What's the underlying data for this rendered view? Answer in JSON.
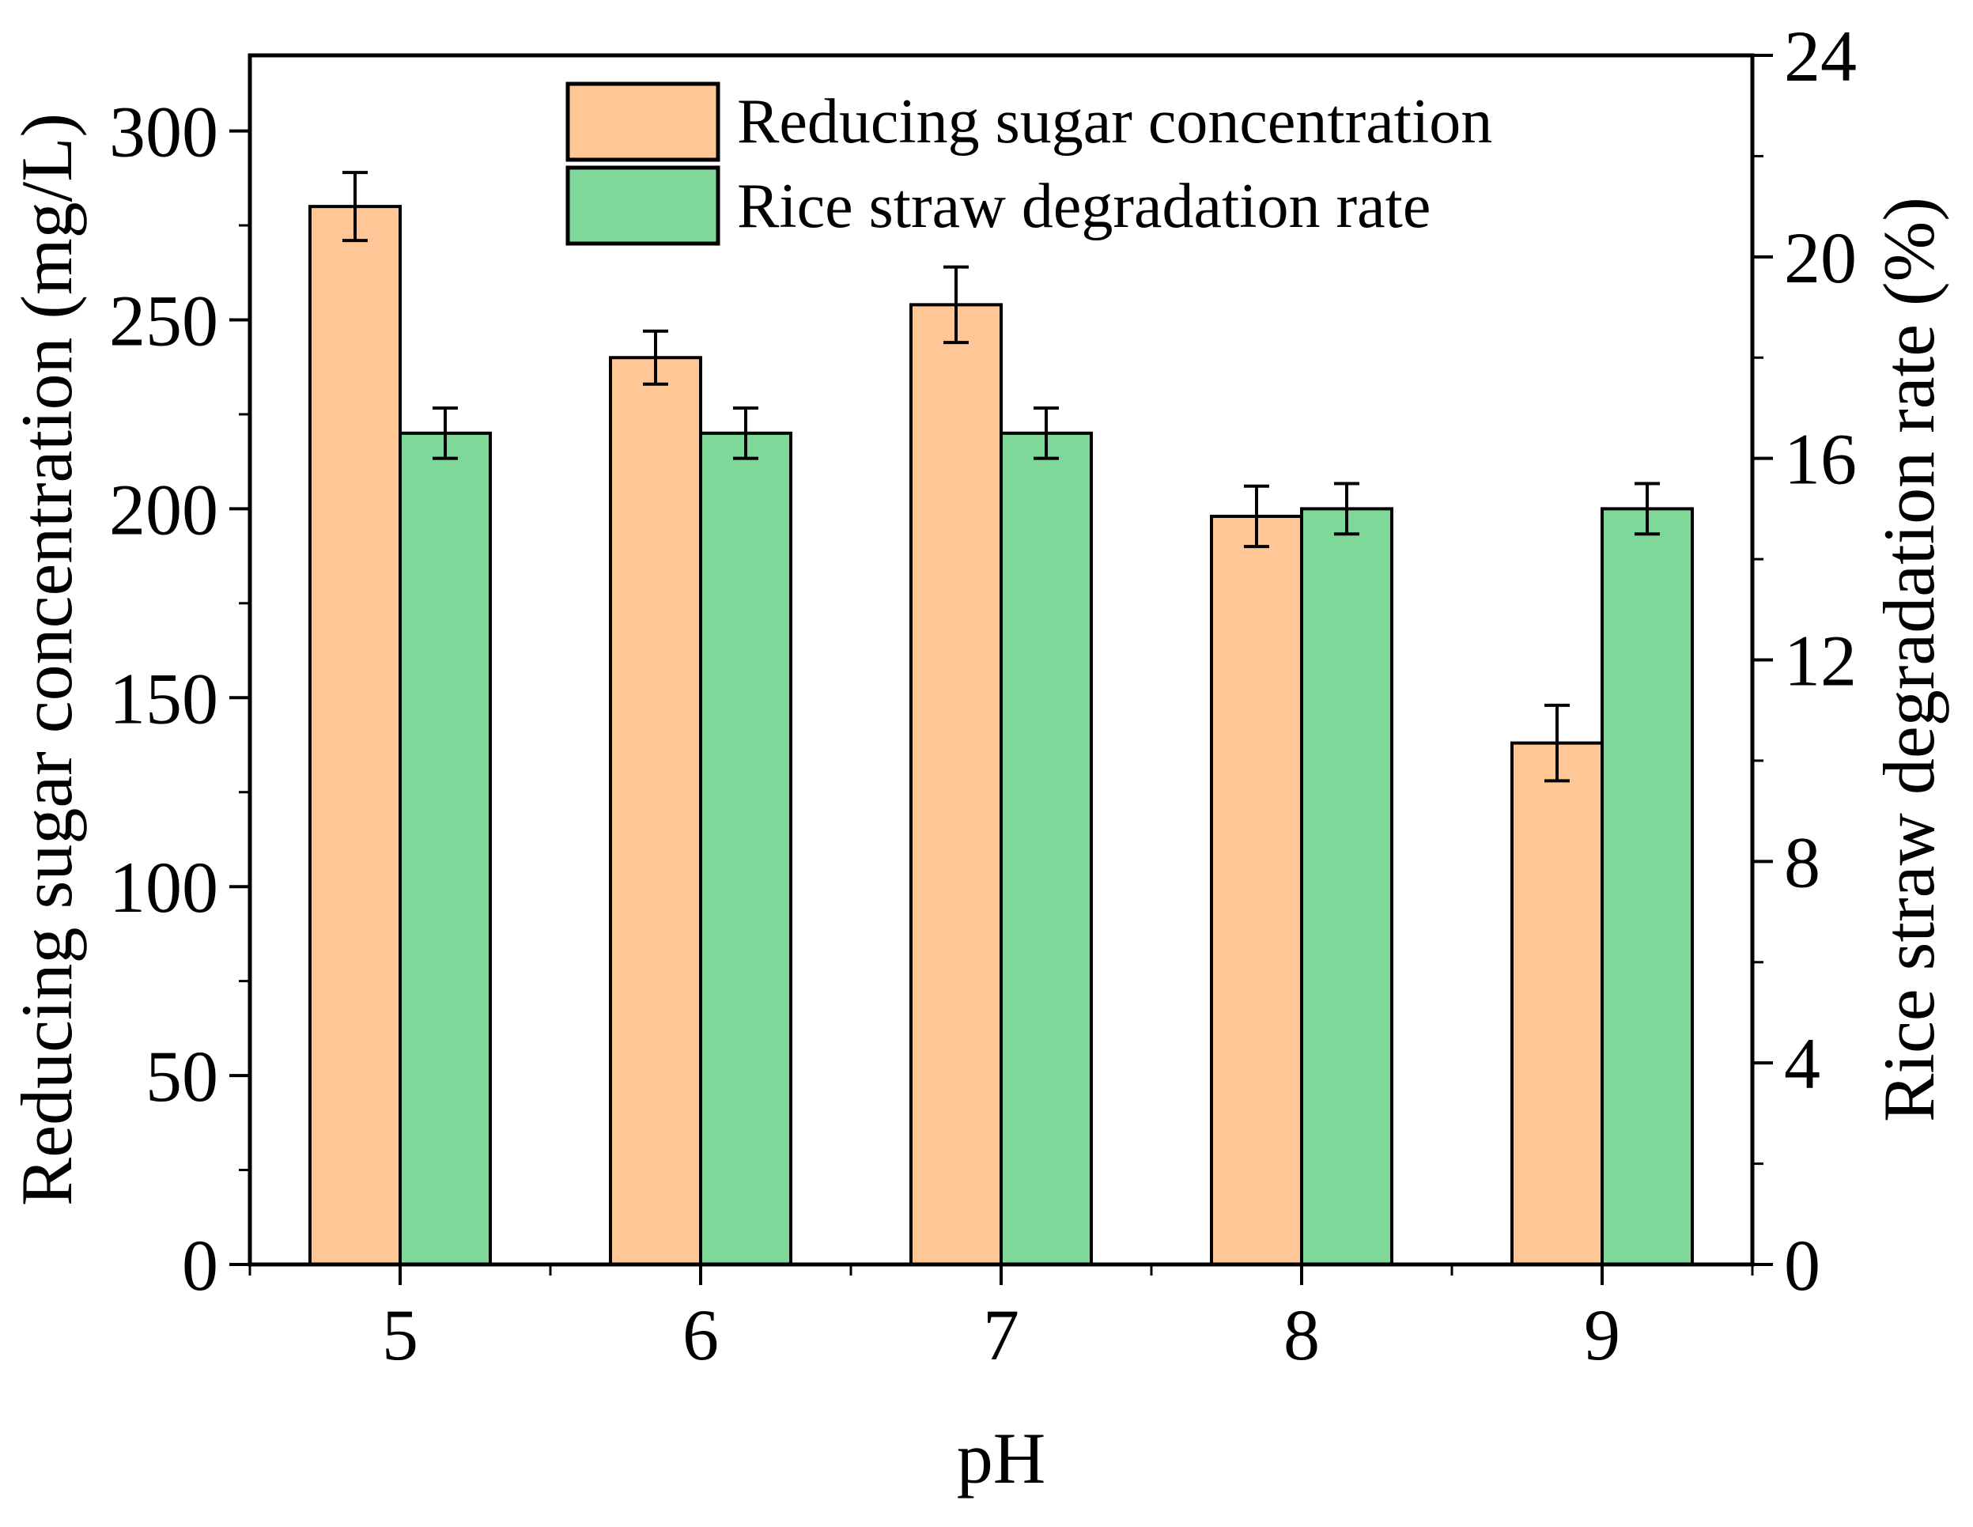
{
  "chart_data": {
    "type": "bar",
    "xlabel": "pH",
    "ylabel_left": "Reducing sugar concentration (mg/L)",
    "ylabel_right": "Rice straw degradation rate (%)",
    "categories": [
      "5",
      "6",
      "7",
      "8",
      "9"
    ],
    "ylim_left": [
      0,
      320
    ],
    "ylim_right": [
      0,
      24
    ],
    "yticks_left": [
      0,
      50,
      100,
      150,
      200,
      250,
      300
    ],
    "yticks_right": [
      0,
      4,
      8,
      12,
      16,
      20,
      24
    ],
    "legend_position": "top-center",
    "series": [
      {
        "name": "Reducing sugar concentration",
        "axis": "left",
        "color": "#FFC796",
        "values": [
          280,
          240,
          254,
          198,
          138
        ],
        "errors": [
          9,
          7,
          10,
          8,
          10
        ]
      },
      {
        "name": "Rice straw degradation rate",
        "axis": "right",
        "color": "#7FD89A",
        "values": [
          16.5,
          16.5,
          16.5,
          15.0,
          15.0
        ],
        "errors": [
          0.5,
          0.5,
          0.5,
          0.5,
          0.5
        ]
      }
    ]
  }
}
